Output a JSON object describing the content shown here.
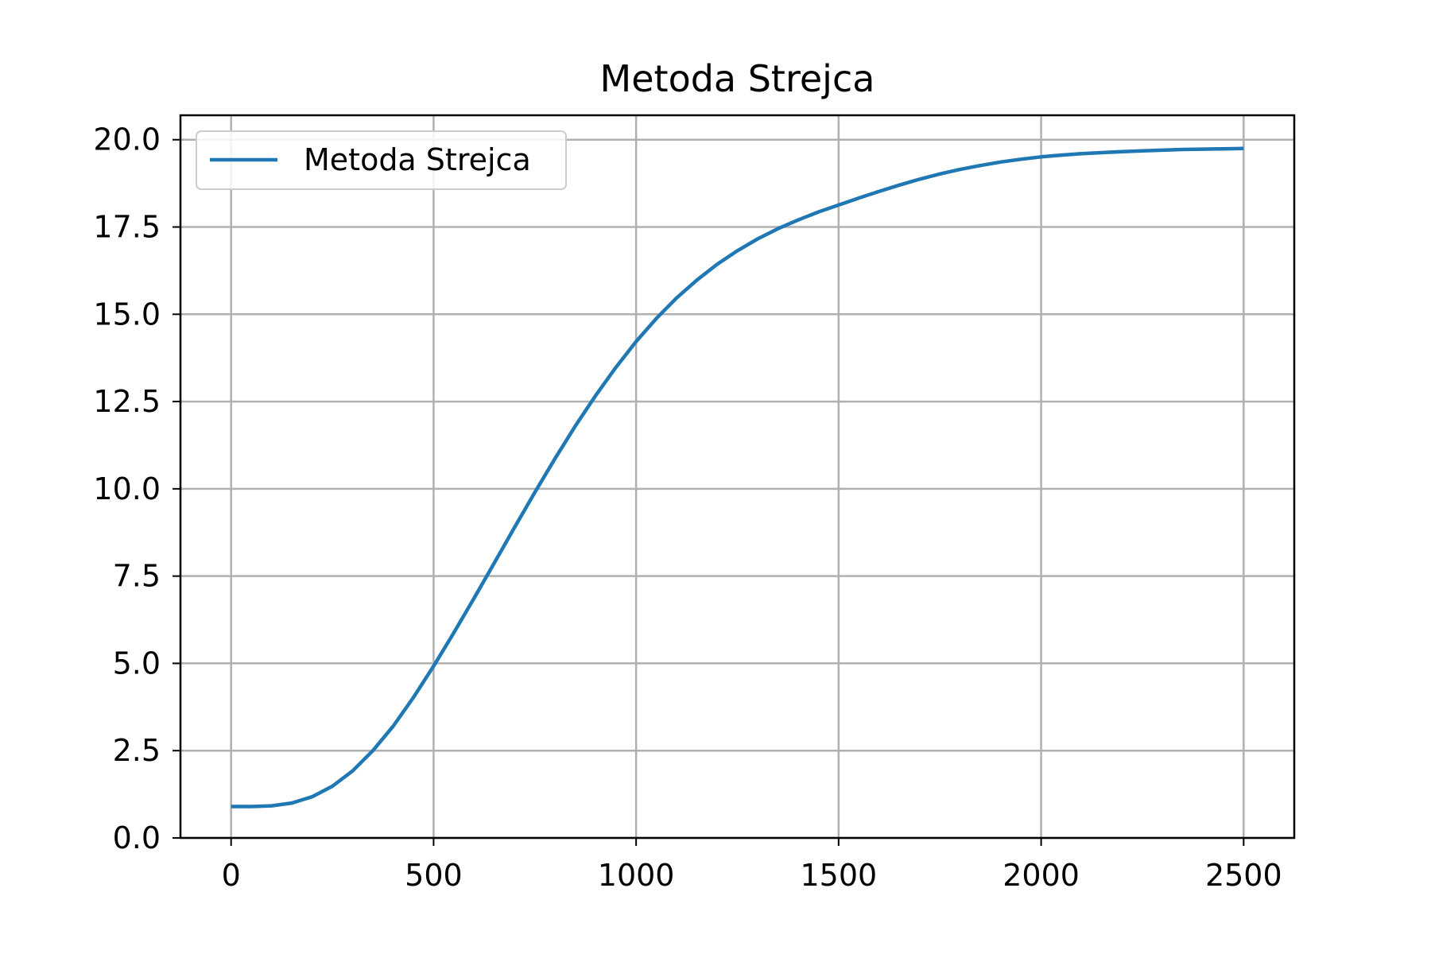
{
  "chart_data": {
    "type": "line",
    "title": "Metoda Strejca",
    "xlabel": "",
    "ylabel": "",
    "xlim": [
      -125,
      2625
    ],
    "ylim": [
      0,
      20.7
    ],
    "xticks": [
      0,
      500,
      1000,
      1500,
      2000,
      2500
    ],
    "xtick_labels": [
      "0",
      "500",
      "1000",
      "1500",
      "2000",
      "2500"
    ],
    "yticks": [
      0,
      2.5,
      5,
      7.5,
      10,
      12.5,
      15,
      17.5,
      20
    ],
    "ytick_labels": [
      "0.0",
      "2.5",
      "5.0",
      "7.5",
      "10.0",
      "12.5",
      "15.0",
      "17.5",
      "20.0"
    ],
    "grid": true,
    "legend_position": "upper-left",
    "legend_entries": [
      "Metoda Strejca"
    ],
    "series": [
      {
        "name": "Metoda Strejca",
        "color": "#1f77b4",
        "x": [
          0,
          50,
          100,
          150,
          200,
          250,
          300,
          350,
          400,
          450,
          500,
          550,
          600,
          650,
          700,
          750,
          800,
          850,
          900,
          950,
          1000,
          1050,
          1100,
          1150,
          1200,
          1250,
          1300,
          1350,
          1400,
          1450,
          1500,
          1550,
          1600,
          1650,
          1700,
          1750,
          1800,
          1850,
          1900,
          1950,
          2000,
          2050,
          2100,
          2150,
          2200,
          2250,
          2300,
          2350,
          2400,
          2450,
          2500
        ],
        "y": [
          0.9,
          0.9,
          0.92,
          1.0,
          1.18,
          1.48,
          1.92,
          2.5,
          3.2,
          4.02,
          4.92,
          5.88,
          6.87,
          7.88,
          8.9,
          9.9,
          10.87,
          11.8,
          12.67,
          13.48,
          14.22,
          14.88,
          15.47,
          15.98,
          16.43,
          16.82,
          17.16,
          17.45,
          17.7,
          17.93,
          18.13,
          18.33,
          18.52,
          18.7,
          18.87,
          19.02,
          19.15,
          19.26,
          19.36,
          19.44,
          19.51,
          19.56,
          19.6,
          19.63,
          19.66,
          19.68,
          19.7,
          19.72,
          19.73,
          19.74,
          19.75
        ]
      }
    ]
  }
}
